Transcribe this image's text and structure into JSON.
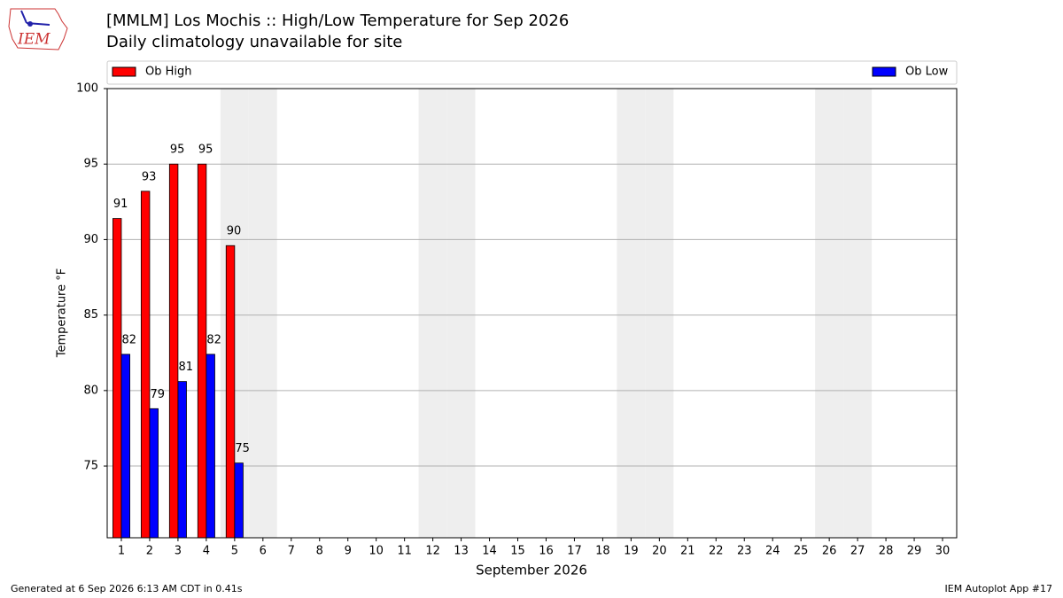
{
  "chart_data": {
    "type": "bar",
    "title": "[MMLM] Los Mochis :: High/Low Temperature for Sep 2026",
    "subtitle": "Daily climatology unavailable for site",
    "logo": "IEM",
    "xlabel": "September 2026",
    "ylabel": "Temperature °F",
    "footer_left": "Generated at 6 Sep 2026 6:13 AM CDT in 0.41s",
    "footer_right": "IEM Autoplot App #17",
    "categories": [
      "1",
      "2",
      "3",
      "4",
      "5",
      "6",
      "7",
      "8",
      "9",
      "10",
      "11",
      "12",
      "13",
      "14",
      "15",
      "16",
      "17",
      "18",
      "19",
      "20",
      "21",
      "22",
      "23",
      "24",
      "25",
      "26",
      "27",
      "28",
      "29",
      "30"
    ],
    "shaded_categories": [
      "5",
      "6",
      "12",
      "13",
      "19",
      "20",
      "26",
      "27"
    ],
    "series": [
      {
        "name": "Ob High",
        "color": "#ff0000",
        "values": [
          91.4,
          93.2,
          95.0,
          95.0,
          89.6,
          null,
          null,
          null,
          null,
          null,
          null,
          null,
          null,
          null,
          null,
          null,
          null,
          null,
          null,
          null,
          null,
          null,
          null,
          null,
          null,
          null,
          null,
          null,
          null,
          null
        ],
        "value_labels": [
          "91",
          "93",
          "95",
          "95",
          "90",
          null,
          null,
          null,
          null,
          null,
          null,
          null,
          null,
          null,
          null,
          null,
          null,
          null,
          null,
          null,
          null,
          null,
          null,
          null,
          null,
          null,
          null,
          null,
          null,
          null
        ]
      },
      {
        "name": "Ob Low",
        "color": "#0000ff",
        "values": [
          82.4,
          78.8,
          80.6,
          82.4,
          75.2,
          null,
          null,
          null,
          null,
          null,
          null,
          null,
          null,
          null,
          null,
          null,
          null,
          null,
          null,
          null,
          null,
          null,
          null,
          null,
          null,
          null,
          null,
          null,
          null,
          null
        ],
        "value_labels": [
          "82",
          "79",
          "81",
          "82",
          "75",
          null,
          null,
          null,
          null,
          null,
          null,
          null,
          null,
          null,
          null,
          null,
          null,
          null,
          null,
          null,
          null,
          null,
          null,
          null,
          null,
          null,
          null,
          null,
          null,
          null
        ]
      }
    ],
    "ylim": [
      70.25,
      100
    ],
    "yticks": [
      75,
      80,
      85,
      90,
      95,
      100
    ],
    "grid": true
  }
}
